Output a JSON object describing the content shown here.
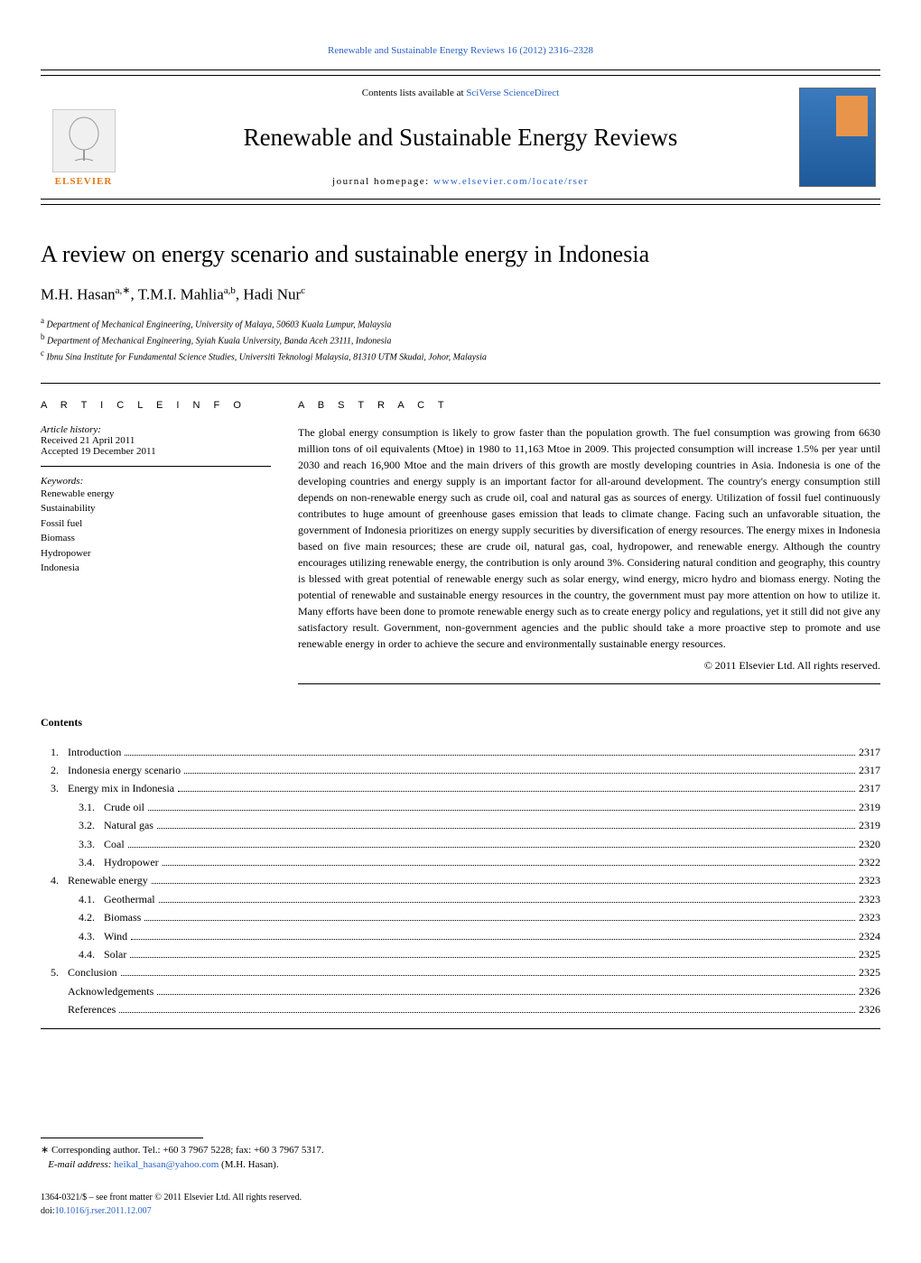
{
  "header": {
    "citation": "Renewable and Sustainable Energy Reviews 16 (2012) 2316–2328",
    "contents_available": "Contents lists available at ",
    "sciencedirect": "SciVerse ScienceDirect",
    "journal_name": "Renewable and Sustainable Energy Reviews",
    "homepage_label": "journal homepage: ",
    "homepage_url": "www.elsevier.com/locate/rser",
    "elsevier": "ELSEVIER"
  },
  "article": {
    "title": "A review on energy scenario and sustainable energy in Indonesia",
    "authors_html": "M.H. Hasan<sup>a,∗</sup>, T.M.I. Mahlia<sup>a,b</sup>, Hadi Nur<sup>c</sup>",
    "authors": [
      {
        "name": "M.H. Hasan",
        "marks": "a,∗"
      },
      {
        "name": "T.M.I. Mahlia",
        "marks": "a,b"
      },
      {
        "name": "Hadi Nur",
        "marks": "c"
      }
    ],
    "affiliations": [
      {
        "mark": "a",
        "text": "Department of Mechanical Engineering, University of Malaya, 50603 Kuala Lumpur, Malaysia"
      },
      {
        "mark": "b",
        "text": "Department of Mechanical Engineering, Syiah Kuala University, Banda Aceh 23111, Indonesia"
      },
      {
        "mark": "c",
        "text": "Ibnu Sina Institute for Fundamental Science Studies, Universiti Teknologi Malaysia, 81310 UTM Skudai, Johor, Malaysia"
      }
    ]
  },
  "info": {
    "heading": "A R T I C L E   I N F O",
    "history_label": "Article history:",
    "received": "Received 21 April 2011",
    "accepted": "Accepted 19 December 2011",
    "keywords_label": "Keywords:",
    "keywords": [
      "Renewable energy",
      "Sustainability",
      "Fossil fuel",
      "Biomass",
      "Hydropower",
      "Indonesia"
    ]
  },
  "abstract": {
    "heading": "A B S T R A C T",
    "text": "The global energy consumption is likely to grow faster than the population growth. The fuel consumption was growing from 6630 million tons of oil equivalents (Mtoe) in 1980 to 11,163 Mtoe in 2009. This projected consumption will increase 1.5% per year until 2030 and reach 16,900 Mtoe and the main drivers of this growth are mostly developing countries in Asia. Indonesia is one of the developing countries and energy supply is an important factor for all-around development. The country's energy consumption still depends on non-renewable energy such as crude oil, coal and natural gas as sources of energy. Utilization of fossil fuel continuously contributes to huge amount of greenhouse gases emission that leads to climate change. Facing such an unfavorable situation, the government of Indonesia prioritizes on energy supply securities by diversification of energy resources. The energy mixes in Indonesia based on five main resources; these are crude oil, natural gas, coal, hydropower, and renewable energy. Although the country encourages utilizing renewable energy, the contribution is only around 3%. Considering natural condition and geography, this country is blessed with great potential of renewable energy such as solar energy, wind energy, micro hydro and biomass energy. Noting the potential of renewable and sustainable energy resources in the country, the government must pay more attention on how to utilize it. Many efforts have been done to promote renewable energy such as to create energy policy and regulations, yet it still did not give any satisfactory result. Government, non-government agencies and the public should take a more proactive step to promote and use renewable energy in order to achieve the secure and environmentally sustainable energy resources.",
    "copyright": "© 2011 Elsevier Ltd. All rights reserved."
  },
  "contents": {
    "heading": "Contents",
    "items": [
      {
        "num": "1.",
        "sub": "",
        "title": "Introduction",
        "page": "2317",
        "level": 1
      },
      {
        "num": "2.",
        "sub": "",
        "title": "Indonesia energy scenario",
        "page": "2317",
        "level": 1
      },
      {
        "num": "3.",
        "sub": "",
        "title": "Energy mix in Indonesia",
        "page": "2317",
        "level": 1
      },
      {
        "num": "",
        "sub": "3.1.",
        "title": "Crude oil",
        "page": "2319",
        "level": 2
      },
      {
        "num": "",
        "sub": "3.2.",
        "title": "Natural gas",
        "page": "2319",
        "level": 2
      },
      {
        "num": "",
        "sub": "3.3.",
        "title": "Coal",
        "page": "2320",
        "level": 2
      },
      {
        "num": "",
        "sub": "3.4.",
        "title": "Hydropower",
        "page": "2322",
        "level": 2
      },
      {
        "num": "4.",
        "sub": "",
        "title": "Renewable energy",
        "page": "2323",
        "level": 1
      },
      {
        "num": "",
        "sub": "4.1.",
        "title": "Geothermal",
        "page": "2323",
        "level": 2
      },
      {
        "num": "",
        "sub": "4.2.",
        "title": "Biomass",
        "page": "2323",
        "level": 2
      },
      {
        "num": "",
        "sub": "4.3.",
        "title": "Wind",
        "page": "2324",
        "level": 2
      },
      {
        "num": "",
        "sub": "4.4.",
        "title": "Solar",
        "page": "2325",
        "level": 2
      },
      {
        "num": "5.",
        "sub": "",
        "title": "Conclusion",
        "page": "2325",
        "level": 1
      },
      {
        "num": "",
        "sub": "",
        "title": "Acknowledgements",
        "page": "2326",
        "level": 1
      },
      {
        "num": "",
        "sub": "",
        "title": "References",
        "page": "2326",
        "level": 1
      }
    ]
  },
  "footer": {
    "corresponding_mark": "∗",
    "corresponding": " Corresponding author. Tel.: +60 3 7967 5228; fax: +60 3 7967 5317.",
    "email_label": "E-mail address: ",
    "email": "heikal_hasan@yahoo.com",
    "email_suffix": " (M.H. Hasan).",
    "issn": "1364-0321/$ – see front matter © 2011 Elsevier Ltd. All rights reserved.",
    "doi_label": "doi:",
    "doi": "10.1016/j.rser.2011.12.007"
  },
  "colors": {
    "link": "#2962c4",
    "elsevier_orange": "#e67817",
    "text": "#000000",
    "background": "#ffffff"
  }
}
